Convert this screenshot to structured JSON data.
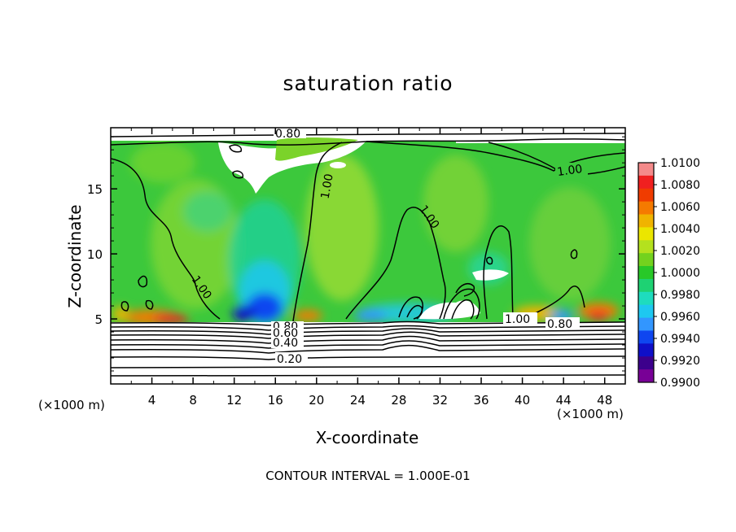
{
  "chart_data": {
    "type": "heatmap",
    "title": "saturation ratio",
    "xlabel": "X-coordinate",
    "ylabel": "Z-coordinate",
    "x_unit": "(×1000 m)",
    "y_unit": "(×1000 m)",
    "xlim": [
      0,
      50
    ],
    "ylim": [
      0,
      19.7
    ],
    "x_ticks": [
      4,
      8,
      12,
      16,
      20,
      24,
      28,
      32,
      36,
      40,
      44,
      48
    ],
    "y_ticks": [
      5,
      10,
      15
    ],
    "colorbar": {
      "ticks": [
        "1.0100",
        "1.0080",
        "1.0060",
        "1.0040",
        "1.0020",
        "1.0000",
        "0.9980",
        "0.9960",
        "0.9940",
        "0.9920",
        "0.9900"
      ],
      "colors": [
        "#f48a8a",
        "#f02020",
        "#f03c00",
        "#f57a00",
        "#f0b400",
        "#ebe600",
        "#b4e11e",
        "#73d21e",
        "#28c828",
        "#1ed273",
        "#1edcbe",
        "#1ec8f0",
        "#3296ff",
        "#0f46f0",
        "#0f0fc8",
        "#3c008c",
        "#780096"
      ]
    },
    "contour_labels": [
      {
        "text": "0.80",
        "x": 18,
        "y": 19.2
      },
      {
        "text": "1.00",
        "x": 46,
        "y": 16.6
      },
      {
        "text": "1.00",
        "x": 16.3,
        "y": 15.2
      },
      {
        "text": "1.00",
        "x": 24.5,
        "y": 12.7
      },
      {
        "text": "1.00",
        "x": 6.5,
        "y": 7.1
      },
      {
        "text": "1.00",
        "x": 39.7,
        "y": 4.9
      },
      {
        "text": "0.80",
        "x": 43.5,
        "y": 4.7
      },
      {
        "text": "0.80",
        "x": 17.3,
        "y": 4.5
      },
      {
        "text": "0.60",
        "x": 17.3,
        "y": 3.9
      },
      {
        "text": "0.40",
        "x": 17.3,
        "y": 3.3
      },
      {
        "text": "0.20",
        "x": 17.3,
        "y": 1.8
      }
    ],
    "footer": "CONTOUR INTERVAL = 1.000E-01"
  }
}
